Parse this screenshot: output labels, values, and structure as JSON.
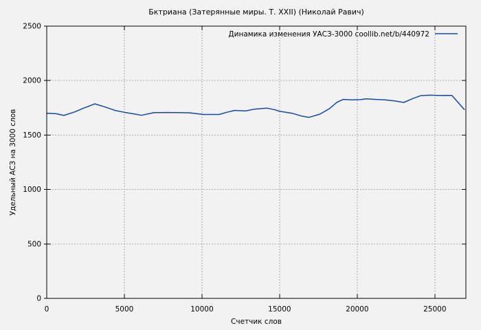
{
  "window": {
    "title": "Бктриана (Затерянные миры. Т. XXII) (Николай Равич)"
  },
  "colors": {
    "background": "#f2f2f2",
    "line": "#1547a8",
    "grid": "#a9a9a9",
    "axis": "#000000",
    "text": "#000000"
  },
  "chart_data": {
    "type": "line",
    "title": "Бктриана (Затерянные миры. Т. XXII) (Николай Равич)",
    "xlabel": "Счетчик слов",
    "ylabel": "Удельный АСЗ на 3000 слов",
    "legend_entry": "Динамика изменения УАСЗ-3000  coollib.net/b/440972",
    "legend_position": "top-right-inside",
    "grid": true,
    "grid_style": "dashed",
    "xlim": [
      0,
      27000
    ],
    "ylim": [
      0,
      2500
    ],
    "xticks": [
      0,
      5000,
      10000,
      15000,
      20000,
      25000
    ],
    "yticks": [
      0,
      500,
      1000,
      1500,
      2000,
      2500
    ],
    "series": [
      {
        "name": "Динамика изменения УАСЗ-3000  coollib.net/b/440972",
        "color": "#1547a8",
        "x": [
          0,
          600,
          1100,
          1800,
          2400,
          3100,
          3700,
          4400,
          5100,
          5700,
          6100,
          6900,
          7700,
          8400,
          9200,
          10100,
          11100,
          11600,
          12100,
          12800,
          13400,
          14200,
          14700,
          15000,
          15800,
          16400,
          16900,
          17600,
          18200,
          18700,
          19100,
          19700,
          20200,
          20600,
          21200,
          21800,
          22400,
          23000,
          23600,
          24100,
          24700,
          25300,
          25800,
          26100,
          26900
        ],
        "y": [
          1700,
          1696,
          1680,
          1712,
          1748,
          1786,
          1760,
          1726,
          1706,
          1692,
          1681,
          1705,
          1707,
          1706,
          1704,
          1689,
          1689,
          1709,
          1726,
          1721,
          1738,
          1747,
          1732,
          1718,
          1700,
          1675,
          1662,
          1692,
          1741,
          1801,
          1827,
          1823,
          1825,
          1832,
          1827,
          1823,
          1814,
          1799,
          1836,
          1862,
          1866,
          1863,
          1864,
          1863,
          1734
        ]
      }
    ]
  }
}
